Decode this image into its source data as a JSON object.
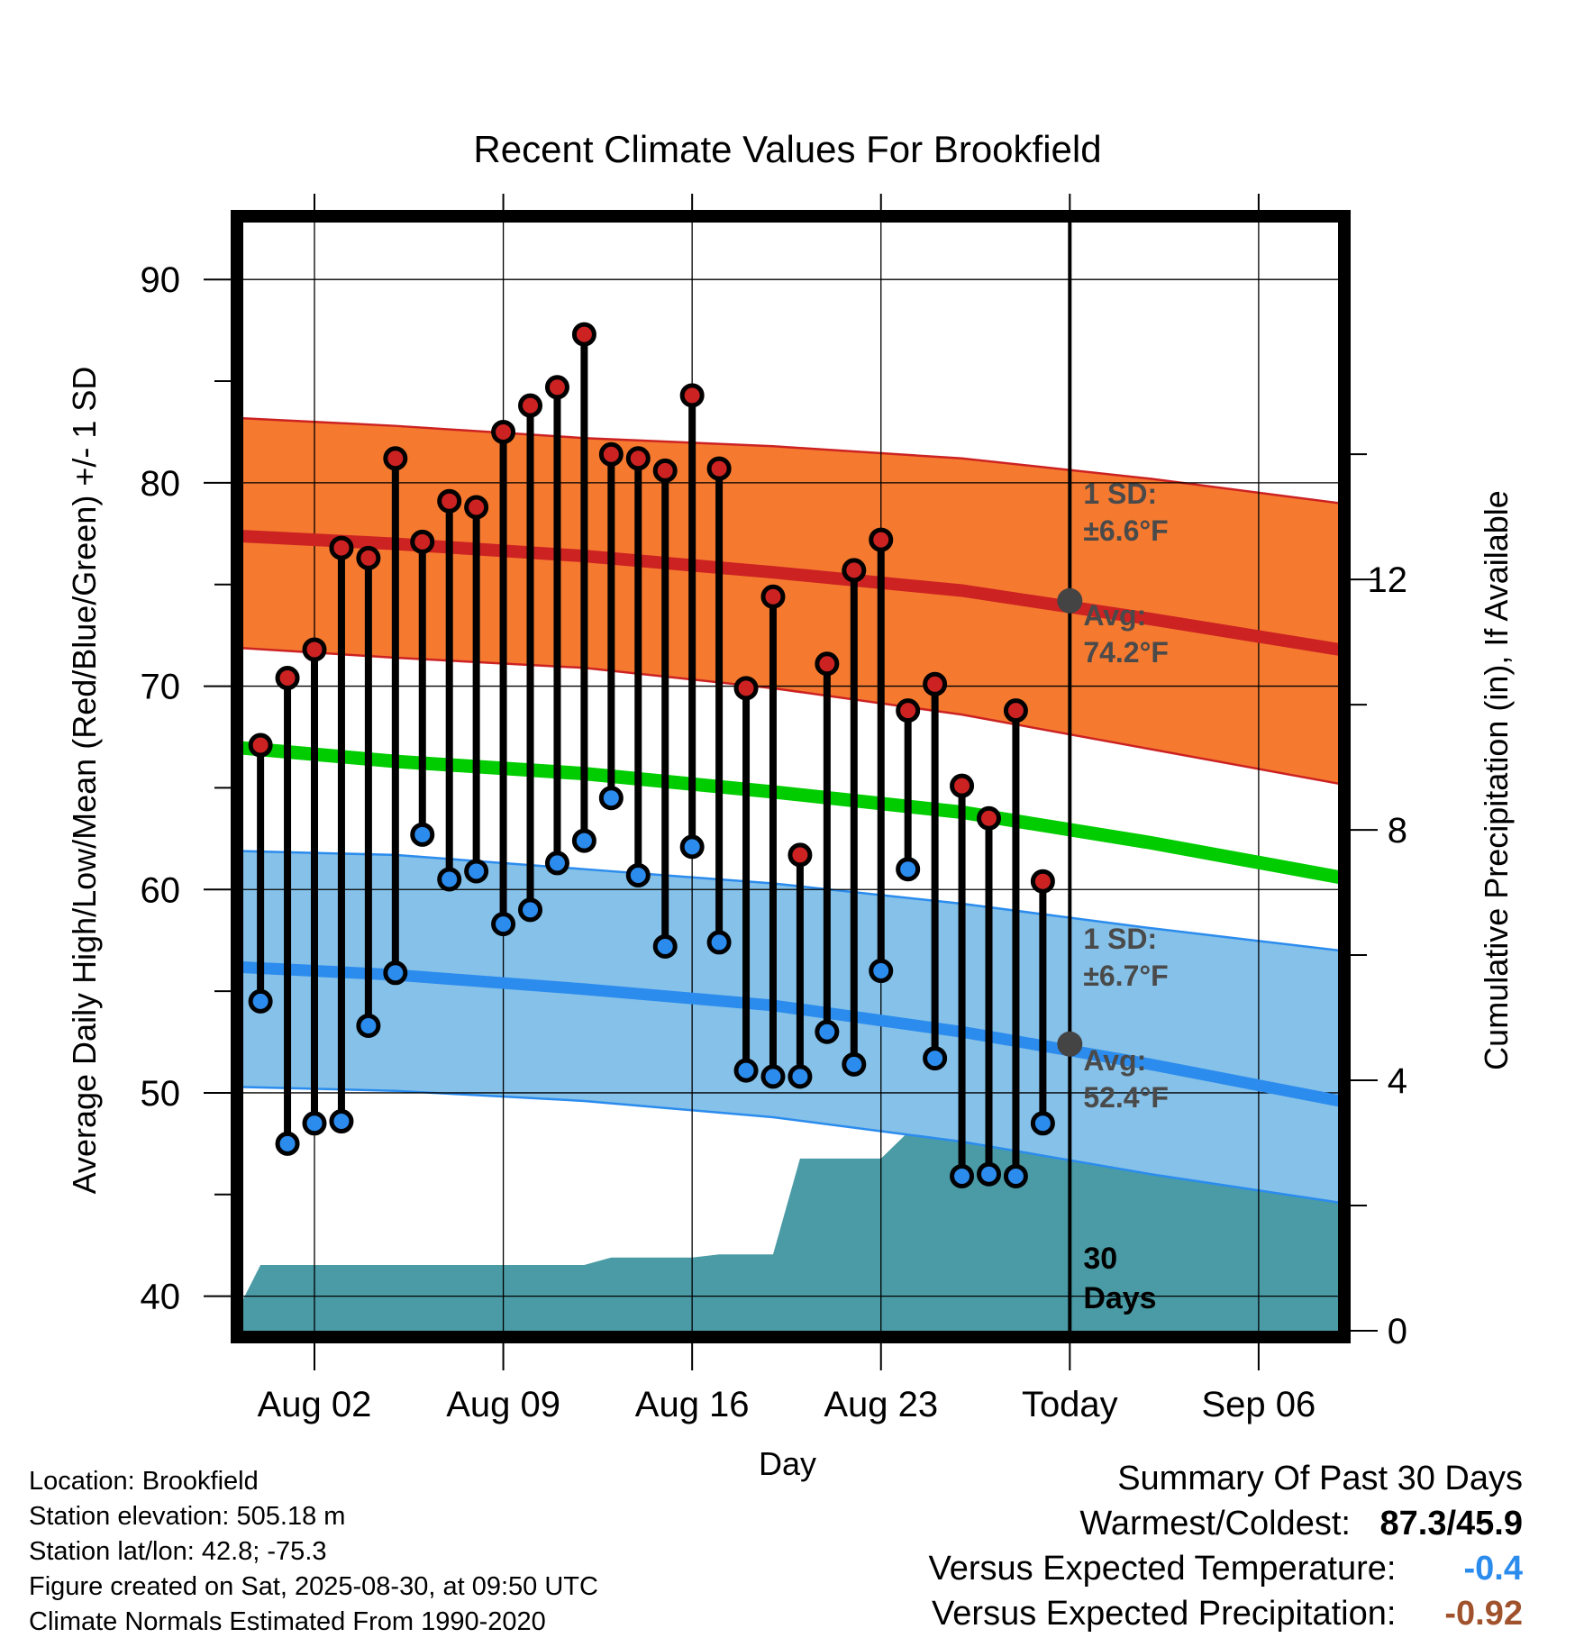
{
  "chart_data": {
    "type": "line",
    "title": "Recent Climate Values For Brookfield",
    "xlabel": "Day",
    "ylabel": "Average Daily High/Low/Mean (Red/Blue/Green) +/- 1 SD",
    "y2label": "Cumulative Precipitation (in), If Available",
    "ylim": [
      38.3,
      92.8
    ],
    "y2lim": [
      0,
      17.7
    ],
    "y_ticks": [
      40,
      50,
      60,
      70,
      80,
      90
    ],
    "y2_ticks": [
      0,
      4,
      8,
      12
    ],
    "x_tick_labels": [
      "Aug 02",
      "Aug 09",
      "Aug 16",
      "Aug 23",
      "Today",
      "Sep 06"
    ],
    "grid": true,
    "days": [
      "Jul 31",
      "Aug 01",
      "Aug 02",
      "Aug 03",
      "Aug 04",
      "Aug 05",
      "Aug 06",
      "Aug 07",
      "Aug 08",
      "Aug 09",
      "Aug 10",
      "Aug 11",
      "Aug 12",
      "Aug 13",
      "Aug 14",
      "Aug 15",
      "Aug 16",
      "Aug 17",
      "Aug 18",
      "Aug 19",
      "Aug 20",
      "Aug 21",
      "Aug 22",
      "Aug 23",
      "Aug 24",
      "Aug 25",
      "Aug 26",
      "Aug 27",
      "Aug 28",
      "Aug 29"
    ],
    "series": [
      {
        "name": "High",
        "color": "#cc2222",
        "values": [
          67.1,
          70.4,
          71.8,
          76.8,
          76.3,
          81.2,
          77.1,
          79.1,
          78.8,
          82.5,
          83.8,
          84.7,
          87.3,
          81.4,
          81.2,
          80.6,
          84.3,
          80.7,
          69.9,
          74.4,
          61.7,
          71.1,
          75.7,
          77.2,
          68.8,
          70.1,
          65.1,
          63.5,
          68.8,
          60.4
        ]
      },
      {
        "name": "Low",
        "color": "#2b8cee",
        "values": [
          54.5,
          47.5,
          48.5,
          48.6,
          53.3,
          55.9,
          62.7,
          60.5,
          60.9,
          58.3,
          59.0,
          61.3,
          62.4,
          64.5,
          60.7,
          57.2,
          62.1,
          57.4,
          51.1,
          50.8,
          50.8,
          53.0,
          51.4,
          56.0,
          61.0,
          51.7,
          45.9,
          46.0,
          45.9,
          48.5
        ]
      }
    ],
    "normals": {
      "x": [
        "Jul 30",
        "Aug 05",
        "Aug 12",
        "Aug 19",
        "Aug 26",
        "Sep 02",
        "Sep 09"
      ],
      "high_avg": [
        77.4,
        77.0,
        76.4,
        75.6,
        74.7,
        73.3,
        71.8
      ],
      "high_upper": [
        83.2,
        82.8,
        82.2,
        81.8,
        81.2,
        80.2,
        79.0
      ],
      "high_lower": [
        71.9,
        71.4,
        70.9,
        69.9,
        68.6,
        66.9,
        65.2
      ],
      "mean_avg": [
        67.0,
        66.3,
        65.7,
        64.8,
        63.8,
        62.3,
        60.6
      ],
      "low_avg": [
        56.2,
        55.8,
        55.1,
        54.3,
        53.0,
        51.4,
        49.6
      ],
      "low_upper": [
        61.9,
        61.7,
        61.0,
        60.3,
        59.3,
        58.1,
        57.0
      ],
      "low_lower": [
        50.3,
        50.1,
        49.6,
        48.8,
        47.6,
        46.0,
        44.6
      ]
    },
    "precipitation": {
      "color": "#4a9ba5",
      "days": [
        "Jul 30",
        "Jul 31",
        "Aug 01",
        "Aug 02",
        "Aug 03",
        "Aug 04",
        "Aug 05",
        "Aug 06",
        "Aug 07",
        "Aug 08",
        "Aug 09",
        "Aug 10",
        "Aug 11",
        "Aug 12",
        "Aug 13",
        "Aug 14",
        "Aug 15",
        "Aug 16",
        "Aug 17",
        "Aug 18",
        "Aug 19",
        "Aug 20",
        "Aug 21",
        "Aug 22",
        "Aug 23",
        "Aug 24",
        "Aug 25",
        "Aug 26",
        "Aug 27",
        "Aug 28",
        "Aug 29",
        "Aug 30",
        "Aug 31",
        "Sep 01",
        "Sep 02",
        "Sep 03",
        "Sep 04",
        "Sep 05",
        "Sep 06",
        "Sep 07",
        "Sep 08",
        "Sep 09"
      ],
      "values": [
        0.2,
        1.05,
        1.05,
        1.05,
        1.05,
        1.05,
        1.05,
        1.05,
        1.05,
        1.05,
        1.05,
        1.05,
        1.05,
        1.05,
        1.17,
        1.17,
        1.17,
        1.17,
        1.22,
        1.22,
        1.22,
        2.75,
        2.75,
        2.75,
        2.75,
        3.17,
        3.2,
        3.2,
        3.2,
        3.2,
        3.42,
        3.42,
        3.42,
        3.42,
        3.42,
        3.42,
        3.42,
        3.42,
        3.42,
        3.42,
        3.42,
        3.42
      ]
    },
    "today": "Aug 30",
    "today_high_avg": 74.2,
    "today_low_avg": 52.4,
    "annotations": {
      "high_sd_label": "1 SD:",
      "high_sd_value": "±6.6°F",
      "high_avg_label": "Avg:",
      "high_avg_value": "74.2°F",
      "low_sd_label": "1 SD:",
      "low_sd_value": "±6.7°F",
      "low_avg_label": "Avg:",
      "low_avg_value": "52.4°F",
      "days_number": "30",
      "days_word": "Days"
    }
  },
  "colors": {
    "high_band": "#f57a30",
    "high_line": "#cc2222",
    "mean_line": "#00cc00",
    "low_band": "#85c1e8",
    "low_line": "#2b8cee",
    "precip": "#4a9ba5",
    "today_marker": "#444444"
  },
  "info": {
    "location": "Location: Brookfield",
    "elevation": "Station elevation: 505.18 m",
    "latlon": "Station lat/lon: 42.8; -75.3",
    "created": "Figure created on Sat, 2025-08-30, at 09:50 UTC",
    "normals": "Climate Normals Estimated From 1990-2020"
  },
  "summary": {
    "heading": "Summary Of Past 30 Days",
    "warmest_label": "Warmest/Coldest:",
    "warmest_value": "87.3/45.9",
    "temp_label": "Versus Expected Temperature:",
    "temp_value": "-0.4",
    "temp_color": "#2b8cee",
    "precip_label": "Versus Expected Precipitation:",
    "precip_value": "-0.92",
    "precip_color": "#a0522d"
  }
}
